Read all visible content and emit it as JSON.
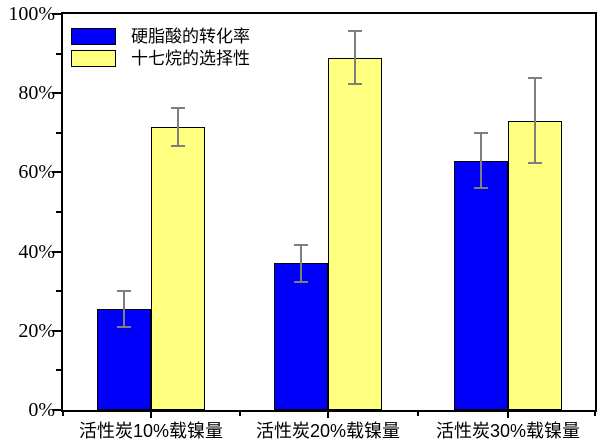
{
  "chart_data": {
    "type": "bar",
    "title": "",
    "xlabel": "",
    "ylabel": "",
    "categories": [
      "活性炭10%载镍量",
      "活性炭20%载镍量",
      "活性炭30%载镍量"
    ],
    "series": [
      {
        "name": "硬脂酸的转化率",
        "color": "#0000fa",
        "values": [
          25.5,
          37,
          63
        ],
        "errors": [
          4.7,
          5,
          7.3
        ]
      },
      {
        "name": "十七烷的选择性",
        "color": "#ffff80",
        "values": [
          71.5,
          89,
          73
        ],
        "errors": [
          5,
          7,
          11
        ]
      }
    ],
    "ylim": [
      0,
      100
    ],
    "ytick_labels": [
      "0%",
      "20%",
      "40%",
      "60%",
      "80%",
      "100%"
    ],
    "ytick_values": [
      0,
      20,
      40,
      60,
      80,
      100
    ],
    "minor_ytick_values": [
      10,
      30,
      50,
      70,
      90
    ],
    "grid": "off",
    "legend_position": "top-left-inside",
    "error_bar_color": "#7f7f7f",
    "axis_color": "#000000",
    "background_color": "#ffffff"
  }
}
